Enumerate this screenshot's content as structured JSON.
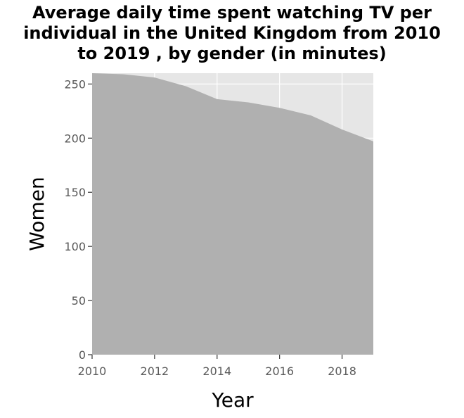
{
  "chart_data": {
    "type": "area",
    "title_lines": [
      "Average daily time spent watching TV per",
      "individual in the United Kingdom from 2010",
      "to 2019 , by gender (in minutes)"
    ],
    "xlabel": "Year",
    "ylabel": "Women",
    "x": [
      2010,
      2011,
      2012,
      2013,
      2014,
      2015,
      2016,
      2017,
      2018,
      2019
    ],
    "series": [
      {
        "values": [
          260,
          259,
          256,
          248,
          236,
          233,
          228,
          221,
          208,
          197
        ],
        "color": "#b0b0b0"
      }
    ],
    "xlim": [
      2010,
      2019
    ],
    "ylim": [
      0,
      260
    ],
    "xticks": [
      2010,
      2012,
      2014,
      2016,
      2018
    ],
    "yticks": [
      0,
      50,
      100,
      150,
      200,
      250
    ],
    "grid": true,
    "panel_background": "#e6e6e6",
    "grid_color": "#ffffff"
  }
}
